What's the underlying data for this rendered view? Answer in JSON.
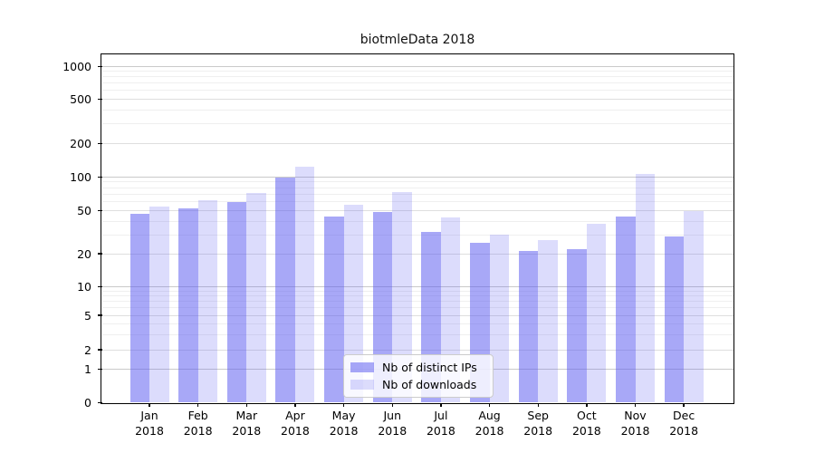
{
  "chart_data": {
    "type": "bar",
    "title": "biotmleData 2018",
    "x_categories": [
      "Jan",
      "Feb",
      "Mar",
      "Apr",
      "May",
      "Jun",
      "Jul",
      "Aug",
      "Sep",
      "Oct",
      "Nov",
      "Dec"
    ],
    "x_year": "2018",
    "series": [
      {
        "name": "Nb of distinct IPs",
        "color": "rgba(88,88,240,0.52)",
        "values": [
          47,
          53,
          60,
          99,
          44,
          49,
          32,
          25,
          21,
          22,
          44,
          29
        ]
      },
      {
        "name": "Nb of downloads",
        "color": "rgba(88,88,240,0.21)",
        "values": [
          55,
          62,
          72,
          125,
          57,
          73,
          43,
          30,
          27,
          38,
          106,
          50
        ]
      }
    ],
    "y_ticks": [
      0,
      1,
      2,
      5,
      10,
      20,
      50,
      100,
      200,
      500,
      1000
    ],
    "y_minor_gridlines": [
      3,
      4,
      6,
      7,
      8,
      9,
      30,
      40,
      60,
      70,
      80,
      90,
      300,
      400,
      600,
      700,
      800,
      900
    ],
    "y_scale": "symlog",
    "ylim": [
      0,
      1200
    ],
    "grid": true,
    "legend_position": "lower center"
  }
}
